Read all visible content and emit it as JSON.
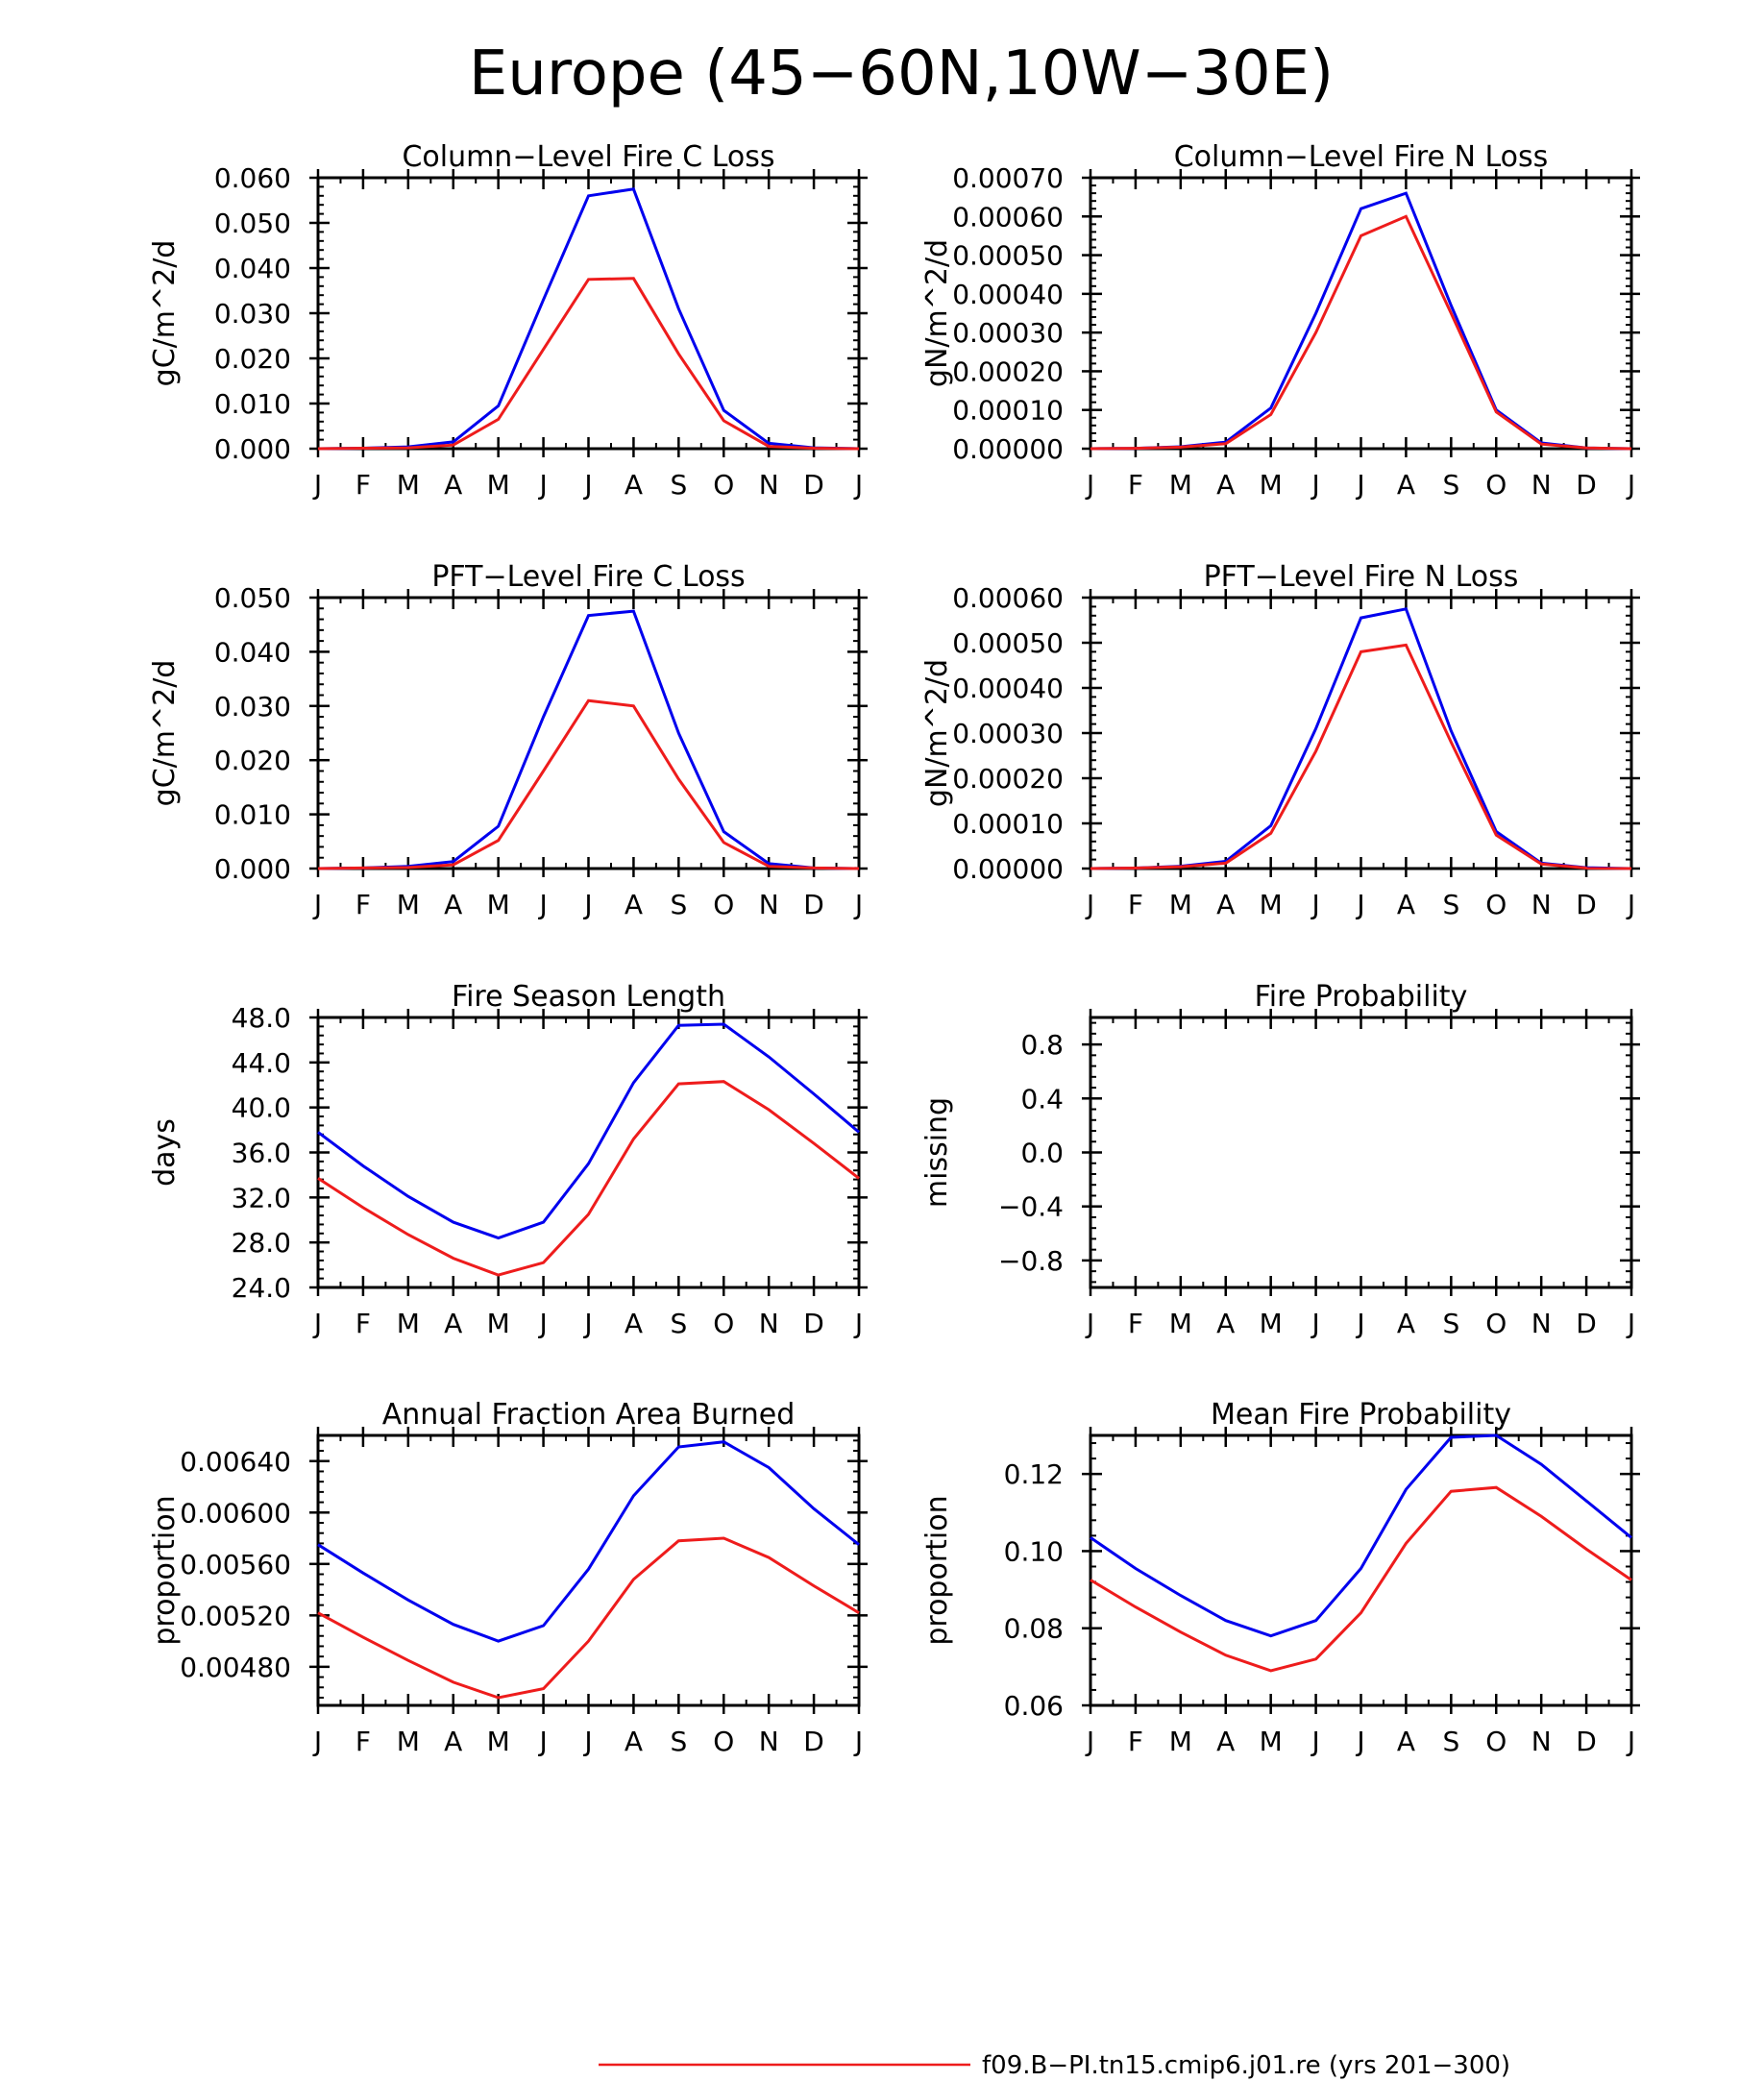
{
  "figure": {
    "title": "Europe (45−60N,10W−30E)",
    "legend": {
      "label": "f09.B−PI.tn15.cmip6.j01.re (yrs 201−300)",
      "color": "#ee1c1c"
    }
  },
  "series_colors": {
    "series_a": "#0000ee",
    "series_b": "#ee1c1c"
  },
  "chart_data": [
    {
      "type": "line",
      "title": "Column−Level Fire C Loss",
      "ylabel": "gC/m^2/d",
      "xlabel": "",
      "x": [
        "J",
        "F",
        "M",
        "A",
        "M",
        "J",
        "J",
        "A",
        "S",
        "O",
        "N",
        "D",
        "J"
      ],
      "ylim": [
        0,
        0.06
      ],
      "yticks": [
        0,
        0.01,
        0.02,
        0.03,
        0.04,
        0.05,
        0.06
      ],
      "ytick_labels": [
        "0.000",
        "0.010",
        "0.020",
        "0.030",
        "0.040",
        "0.050",
        "0.060"
      ],
      "series": [
        {
          "values": [
            0,
            0.0001,
            0.0004,
            0.0015,
            0.0095,
            0.033,
            0.056,
            0.0575,
            0.031,
            0.0085,
            0.0012,
            0.0002,
            0
          ]
        },
        {
          "values": [
            0,
            0.0001,
            0.0002,
            0.0008,
            0.0065,
            0.022,
            0.0375,
            0.0377,
            0.021,
            0.0062,
            0.0005,
            0.0001,
            0
          ]
        }
      ]
    },
    {
      "type": "line",
      "title": "Column−Level Fire N Loss",
      "ylabel": "gN/m^2/d",
      "xlabel": "",
      "x": [
        "J",
        "F",
        "M",
        "A",
        "M",
        "J",
        "J",
        "A",
        "S",
        "O",
        "N",
        "D",
        "J"
      ],
      "ylim": [
        0,
        0.0007
      ],
      "yticks": [
        0,
        0.0001,
        0.0002,
        0.0003,
        0.0004,
        0.0005,
        0.0006,
        0.0007
      ],
      "ytick_labels": [
        "0.00000",
        "0.00010",
        "0.00020",
        "0.00030",
        "0.00040",
        "0.00050",
        "0.00060",
        "0.00070"
      ],
      "series": [
        {
          "values": [
            0,
            1e-06,
            5e-06,
            1.7e-05,
            0.000105,
            0.00035,
            0.00062,
            0.00066,
            0.00037,
            0.0001,
            1.5e-05,
            2e-06,
            0
          ]
        },
        {
          "values": [
            0,
            1e-06,
            4e-06,
            1.3e-05,
            8.8e-05,
            0.0003,
            0.00055,
            0.0006,
            0.00035,
            9.5e-05,
            1.2e-05,
            2e-06,
            0
          ]
        }
      ]
    },
    {
      "type": "line",
      "title": "PFT−Level Fire C Loss",
      "ylabel": "gC/m^2/d",
      "xlabel": "",
      "x": [
        "J",
        "F",
        "M",
        "A",
        "M",
        "J",
        "J",
        "A",
        "S",
        "O",
        "N",
        "D",
        "J"
      ],
      "ylim": [
        0,
        0.05
      ],
      "yticks": [
        0,
        0.01,
        0.02,
        0.03,
        0.04,
        0.05
      ],
      "ytick_labels": [
        "0.000",
        "0.010",
        "0.020",
        "0.030",
        "0.040",
        "0.050"
      ],
      "series": [
        {
          "values": [
            0,
            0.0001,
            0.0004,
            0.0013,
            0.0078,
            0.028,
            0.0467,
            0.0475,
            0.025,
            0.0068,
            0.0009,
            0.0001,
            0
          ]
        },
        {
          "values": [
            0,
            0.0001,
            0.0002,
            0.0007,
            0.0052,
            0.018,
            0.031,
            0.03,
            0.0165,
            0.0048,
            0.0004,
            0.0001,
            0
          ]
        }
      ]
    },
    {
      "type": "line",
      "title": "PFT−Level Fire N Loss",
      "ylabel": "gN/m^2/d",
      "xlabel": "",
      "x": [
        "J",
        "F",
        "M",
        "A",
        "M",
        "J",
        "J",
        "A",
        "S",
        "O",
        "N",
        "D",
        "J"
      ],
      "ylim": [
        0,
        0.0006
      ],
      "yticks": [
        0,
        0.0001,
        0.0002,
        0.0003,
        0.0004,
        0.0005,
        0.0006
      ],
      "ytick_labels": [
        "0.00000",
        "0.00010",
        "0.00020",
        "0.00030",
        "0.00040",
        "0.00050",
        "0.00060"
      ],
      "series": [
        {
          "values": [
            0,
            1e-06,
            5e-06,
            1.6e-05,
            9.5e-05,
            0.00031,
            0.000555,
            0.000575,
            0.000305,
            8.2e-05,
            1.2e-05,
            2e-06,
            0
          ]
        },
        {
          "values": [
            0,
            1e-06,
            4e-06,
            1.2e-05,
            7.8e-05,
            0.00026,
            0.00048,
            0.000495,
            0.00028,
            7.4e-05,
            1e-05,
            1e-06,
            0
          ]
        }
      ]
    },
    {
      "type": "line",
      "title": "Fire Season Length",
      "ylabel": "days",
      "xlabel": "",
      "x": [
        "J",
        "F",
        "M",
        "A",
        "M",
        "J",
        "J",
        "A",
        "S",
        "O",
        "N",
        "D",
        "J"
      ],
      "ylim": [
        24,
        48
      ],
      "yticks": [
        24,
        28,
        32,
        36,
        40,
        44,
        48
      ],
      "ytick_labels": [
        "24.0",
        "28.0",
        "32.0",
        "36.0",
        "40.0",
        "44.0",
        "48.0"
      ],
      "series": [
        {
          "values": [
            37.8,
            34.8,
            32.1,
            29.8,
            28.4,
            29.8,
            35,
            42.2,
            47.3,
            47.4,
            44.5,
            41.2,
            37.8
          ]
        },
        {
          "values": [
            33.7,
            31.1,
            28.7,
            26.6,
            25.1,
            26.2,
            30.5,
            37.2,
            42.1,
            42.3,
            39.8,
            36.8,
            33.7
          ]
        }
      ]
    },
    {
      "type": "line",
      "title": "Fire Probability",
      "ylabel": "missing",
      "xlabel": "",
      "x": [
        "J",
        "F",
        "M",
        "A",
        "M",
        "J",
        "J",
        "A",
        "S",
        "O",
        "N",
        "D",
        "J"
      ],
      "ylim": [
        -1,
        1
      ],
      "yticks": [
        -0.8,
        -0.4,
        0,
        0.4,
        0.8
      ],
      "ytick_labels": [
        "−0.8",
        "−0.4",
        "0.0",
        "0.4",
        "0.8"
      ],
      "series": []
    },
    {
      "type": "line",
      "title": "Annual Fraction Area Burned",
      "ylabel": "proportion",
      "xlabel": "",
      "x": [
        "J",
        "F",
        "M",
        "A",
        "M",
        "J",
        "J",
        "A",
        "S",
        "O",
        "N",
        "D",
        "J"
      ],
      "ylim": [
        0.0045,
        0.0066
      ],
      "yticks": [
        0.0048,
        0.0052,
        0.0056,
        0.006,
        0.0064
      ],
      "ytick_labels": [
        "0.00480",
        "0.00520",
        "0.00560",
        "0.00600",
        "0.00640"
      ],
      "series": [
        {
          "values": [
            0.00575,
            0.00553,
            0.00532,
            0.00513,
            0.005,
            0.00512,
            0.00556,
            0.00613,
            0.00651,
            0.00655,
            0.00635,
            0.00603,
            0.00575
          ]
        },
        {
          "values": [
            0.00522,
            0.00503,
            0.00485,
            0.00468,
            0.00456,
            0.00463,
            0.005,
            0.00548,
            0.00578,
            0.0058,
            0.00565,
            0.00543,
            0.00522
          ]
        }
      ]
    },
    {
      "type": "line",
      "title": "Mean Fire Probability",
      "ylabel": "proportion",
      "xlabel": "",
      "x": [
        "J",
        "F",
        "M",
        "A",
        "M",
        "J",
        "J",
        "A",
        "S",
        "O",
        "N",
        "D",
        "J"
      ],
      "ylim": [
        0.06,
        0.13
      ],
      "yticks": [
        0.06,
        0.08,
        0.1,
        0.12
      ],
      "ytick_labels": [
        "0.06",
        "0.08",
        "0.10",
        "0.12"
      ],
      "series": [
        {
          "values": [
            0.1035,
            0.0955,
            0.0885,
            0.082,
            0.078,
            0.082,
            0.0955,
            0.116,
            0.1295,
            0.13,
            0.1225,
            0.113,
            0.1035
          ]
        },
        {
          "values": [
            0.0925,
            0.0855,
            0.079,
            0.073,
            0.069,
            0.072,
            0.084,
            0.102,
            0.1155,
            0.1165,
            0.109,
            0.1005,
            0.0925
          ]
        }
      ]
    }
  ]
}
